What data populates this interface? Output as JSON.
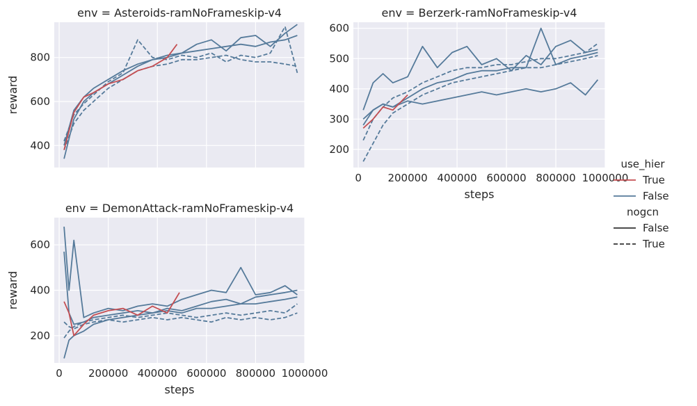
{
  "chart_data": {
    "type": "line",
    "hue_colors": {
      "True": "#c44e52",
      "False": "#4c72b0"
    },
    "legend": {
      "placement": "right",
      "groups": [
        {
          "title": "use_hier",
          "entries": [
            {
              "label": "True",
              "color": "#c44e52",
              "dash": "solid"
            },
            {
              "label": "False",
              "color": "#557a9a",
              "dash": "solid"
            }
          ]
        },
        {
          "title": "nogcn",
          "entries": [
            {
              "label": "False",
              "color": "#333333",
              "dash": "solid"
            },
            {
              "label": "True",
              "color": "#333333",
              "dash": "dashed"
            }
          ]
        }
      ]
    },
    "panels": [
      {
        "title": "env = Asteroids-ramNoFrameskip-v4",
        "xlabel": "",
        "ylabel": "reward",
        "xlim": [
          -20000,
          1000000
        ],
        "ylim": [
          300,
          960
        ],
        "xticks": [],
        "yticks": [
          400,
          600,
          800
        ],
        "show_xtick_labels": false,
        "grid": true,
        "series": [
          {
            "name": "False",
            "dash": "solid",
            "color": "#557a9a",
            "x": [
              20000,
              60000,
              100000,
              140000,
              200000,
              260000,
              320000,
              380000,
              440000,
              500000,
              560000,
              620000,
              680000,
              740000,
              800000,
              860000,
              920000,
              970000
            ],
            "y": [
              340,
              520,
              600,
              640,
              680,
              720,
              760,
              790,
              800,
              820,
              830,
              840,
              850,
              860,
              850,
              870,
              880,
              900
            ]
          },
          {
            "name": "False",
            "dash": "solid",
            "color": "#557a9a",
            "x": [
              20000,
              60000,
              100000,
              140000,
              200000,
              260000,
              320000,
              380000,
              440000,
              500000,
              560000,
              620000,
              680000,
              740000,
              800000,
              860000,
              920000,
              970000
            ],
            "y": [
              400,
              560,
              620,
              660,
              700,
              740,
              770,
              790,
              810,
              820,
              860,
              880,
              830,
              890,
              900,
              850,
              910,
              950
            ]
          },
          {
            "name": "False",
            "dash": "dashed",
            "color": "#557a9a",
            "x": [
              20000,
              60000,
              100000,
              140000,
              200000,
              260000,
              320000,
              380000,
              440000,
              500000,
              560000,
              620000,
              680000,
              740000,
              800000,
              860000,
              920000,
              970000
            ],
            "y": [
              380,
              500,
              560,
              600,
              660,
              700,
              740,
              760,
              770,
              790,
              790,
              800,
              810,
              790,
              780,
              780,
              770,
              760
            ]
          },
          {
            "name": "False",
            "dash": "dashed",
            "color": "#557a9a",
            "x": [
              20000,
              60000,
              100000,
              140000,
              200000,
              260000,
              320000,
              380000,
              440000,
              500000,
              560000,
              620000,
              680000,
              740000,
              800000,
              860000,
              920000,
              970000
            ],
            "y": [
              420,
              540,
              590,
              630,
              690,
              730,
              880,
              800,
              790,
              810,
              800,
              820,
              780,
              810,
              800,
              820,
              940,
              730
            ]
          },
          {
            "name": "True",
            "dash": "solid",
            "color": "#c44e52",
            "x": [
              20000,
              60000,
              100000,
              140000,
              200000,
              260000,
              320000,
              380000,
              440000,
              480000
            ],
            "y": [
              380,
              550,
              620,
              640,
              680,
              700,
              740,
              760,
              800,
              860
            ]
          }
        ]
      },
      {
        "title": "env = Berzerk-ramNoFrameskip-v4",
        "xlabel": "steps",
        "ylabel": "",
        "xlim": [
          -20000,
          1000000
        ],
        "ylim": [
          140,
          620
        ],
        "xticks": [
          0,
          200000,
          400000,
          600000,
          800000,
          1000000
        ],
        "yticks": [
          200,
          300,
          400,
          500,
          600
        ],
        "show_xtick_labels": true,
        "grid": true,
        "series": [
          {
            "name": "False",
            "dash": "solid",
            "color": "#557a9a",
            "x": [
              20000,
              60000,
              100000,
              140000,
              200000,
              260000,
              320000,
              380000,
              440000,
              500000,
              560000,
              620000,
              680000,
              740000,
              800000,
              860000,
              920000,
              970000
            ],
            "y": [
              280,
              330,
              350,
              340,
              370,
              400,
              420,
              430,
              450,
              460,
              460,
              470,
              470,
              600,
              480,
              500,
              510,
              520
            ]
          },
          {
            "name": "False",
            "dash": "solid",
            "color": "#557a9a",
            "x": [
              20000,
              60000,
              100000,
              140000,
              200000,
              260000,
              320000,
              380000,
              440000,
              500000,
              560000,
              620000,
              680000,
              740000,
              800000,
              860000,
              920000,
              970000
            ],
            "y": [
              330,
              420,
              450,
              420,
              440,
              540,
              470,
              520,
              540,
              480,
              500,
              460,
              510,
              480,
              540,
              560,
              520,
              530
            ]
          },
          {
            "name": "False",
            "dash": "solid",
            "color": "#557a9a",
            "x": [
              20000,
              60000,
              100000,
              140000,
              200000,
              260000,
              320000,
              380000,
              440000,
              500000,
              560000,
              620000,
              680000,
              740000,
              800000,
              860000,
              920000,
              970000
            ],
            "y": [
              300,
              330,
              350,
              340,
              360,
              350,
              360,
              370,
              380,
              390,
              380,
              390,
              400,
              390,
              400,
              420,
              380,
              430
            ]
          },
          {
            "name": "False",
            "dash": "dashed",
            "color": "#557a9a",
            "x": [
              20000,
              60000,
              100000,
              140000,
              200000,
              260000,
              320000,
              380000,
              440000,
              500000,
              560000,
              620000,
              680000,
              740000,
              800000,
              860000,
              920000,
              970000
            ],
            "y": [
              160,
              220,
              280,
              320,
              350,
              380,
              400,
              420,
              430,
              440,
              450,
              460,
              470,
              470,
              480,
              490,
              500,
              510
            ]
          },
          {
            "name": "False",
            "dash": "dashed",
            "color": "#557a9a",
            "x": [
              20000,
              60000,
              100000,
              140000,
              200000,
              260000,
              320000,
              380000,
              440000,
              500000,
              560000,
              620000,
              680000,
              740000,
              800000,
              860000,
              920000,
              970000
            ],
            "y": [
              230,
              300,
              340,
              370,
              390,
              420,
              440,
              460,
              470,
              470,
              480,
              480,
              490,
              500,
              500,
              510,
              520,
              550
            ]
          },
          {
            "name": "True",
            "dash": "solid",
            "color": "#c44e52",
            "x": [
              20000,
              60000,
              100000,
              140000,
              200000
            ],
            "y": [
              270,
              300,
              340,
              330,
              380
            ]
          }
        ]
      },
      {
        "title": "env = DemonAttack-ramNoFrameskip-v4",
        "xlabel": "steps",
        "ylabel": "reward",
        "xlim": [
          -20000,
          1000000
        ],
        "ylim": [
          80,
          720
        ],
        "xticks": [
          0,
          200000,
          400000,
          600000,
          800000,
          1000000
        ],
        "yticks": [
          200,
          400,
          600
        ],
        "show_xtick_labels": true,
        "grid": true,
        "series": [
          {
            "name": "False",
            "dash": "solid",
            "color": "#557a9a",
            "x": [
              20000,
              40000,
              60000,
              100000,
              140000,
              200000,
              260000,
              320000,
              380000,
              440000,
              500000,
              560000,
              620000,
              680000,
              740000,
              800000,
              860000,
              920000,
              970000
            ],
            "y": [
              680,
              400,
              620,
              280,
              300,
              320,
              310,
              330,
              340,
              330,
              360,
              380,
              400,
              390,
              500,
              380,
              390,
              420,
              380
            ]
          },
          {
            "name": "False",
            "dash": "solid",
            "color": "#557a9a",
            "x": [
              20000,
              40000,
              60000,
              100000,
              140000,
              200000,
              260000,
              320000,
              380000,
              440000,
              500000,
              560000,
              620000,
              680000,
              740000,
              800000,
              860000,
              920000,
              970000
            ],
            "y": [
              570,
              300,
              250,
              260,
              280,
              290,
              300,
              310,
              300,
              320,
              310,
              330,
              350,
              360,
              340,
              370,
              380,
              390,
              400
            ]
          },
          {
            "name": "False",
            "dash": "solid",
            "color": "#557a9a",
            "x": [
              20000,
              40000,
              60000,
              100000,
              140000,
              200000,
              260000,
              320000,
              380000,
              440000,
              500000,
              560000,
              620000,
              680000,
              740000,
              800000,
              860000,
              920000,
              970000
            ],
            "y": [
              100,
              180,
              200,
              220,
              250,
              270,
              280,
              290,
              300,
              310,
              300,
              320,
              320,
              330,
              340,
              340,
              350,
              360,
              370
            ]
          },
          {
            "name": "False",
            "dash": "dashed",
            "color": "#557a9a",
            "x": [
              20000,
              40000,
              60000,
              100000,
              140000,
              200000,
              260000,
              320000,
              380000,
              440000,
              500000,
              560000,
              620000,
              680000,
              740000,
              800000,
              860000,
              920000,
              970000
            ],
            "y": [
              190,
              220,
              240,
              260,
              270,
              280,
              290,
              280,
              290,
              300,
              290,
              280,
              290,
              300,
              290,
              300,
              310,
              300,
              340
            ]
          },
          {
            "name": "False",
            "dash": "dashed",
            "color": "#557a9a",
            "x": [
              20000,
              40000,
              60000,
              100000,
              140000,
              200000,
              260000,
              320000,
              380000,
              440000,
              500000,
              560000,
              620000,
              680000,
              740000,
              800000,
              860000,
              920000,
              970000
            ],
            "y": [
              260,
              240,
              230,
              250,
              260,
              270,
              260,
              270,
              280,
              270,
              280,
              270,
              260,
              280,
              270,
              280,
              270,
              280,
              300
            ]
          },
          {
            "name": "True",
            "dash": "solid",
            "color": "#c44e52",
            "x": [
              20000,
              40000,
              60000,
              100000,
              140000,
              200000,
              260000,
              320000,
              380000,
              440000,
              490000
            ],
            "y": [
              350,
              300,
              200,
              250,
              290,
              310,
              320,
              290,
              330,
              300,
              390
            ]
          }
        ]
      }
    ]
  }
}
